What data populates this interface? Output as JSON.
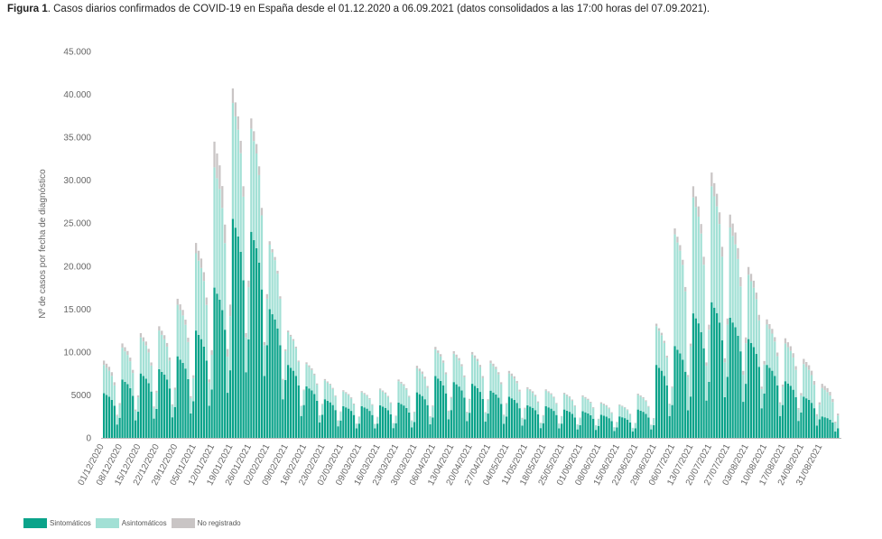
{
  "caption": {
    "bold": "Figura 1",
    "text": ". Casos diarios confirmados de COVID-19 en España desde el 01.12.2020 a 06.09.2021 (datos consolidados a las 17:00 horas del 07.09.2021)."
  },
  "colors": {
    "sintomaticos": "#0aa38a",
    "asintomaticos": "#a2e0d5",
    "no_registrado": "#c9c5c5",
    "tick_text": "#666666"
  },
  "chart_data": {
    "type": "bar",
    "stacked": true,
    "title": "Casos diarios confirmados de COVID-19 en España desde el 01.12.2020 a 06.09.2021 (datos consolidados a las 17:00 horas del 07.09.2021)",
    "xlabel": "",
    "ylabel": "Nº de casos por fecha de diagnóstico",
    "ylim": [
      0,
      45000
    ],
    "grid": false,
    "y_ticks": [
      0,
      5000,
      10000,
      15000,
      20000,
      25000,
      30000,
      35000,
      40000,
      45000
    ],
    "y_tick_labels": [
      "0",
      "5000",
      "10.000",
      "15.000",
      "20.000",
      "25.000",
      "30.000",
      "35.000",
      "40.000",
      "45.000"
    ],
    "x_tick_labels": [
      "01/12/2020",
      "08/12/2020",
      "15/12/2020",
      "22/12/2020",
      "29/12/2020",
      "05/01/2021",
      "12/01/2021",
      "19/01/2021",
      "26/01/2021",
      "02/02/2021",
      "09/02/2021",
      "16/02/2021",
      "23/02/2021",
      "02/03/2021",
      "09/03/2021",
      "16/03/2021",
      "23/03/2021",
      "30/03/2021",
      "06/04/2021",
      "13/04/2021",
      "20/04/2021",
      "27/04/2021",
      "04/05/2021",
      "11/05/2021",
      "18/05/2021",
      "25/05/2021",
      "01/06/2021",
      "08/06/2021",
      "15/06/2021",
      "22/06/2021",
      "29/06/2021",
      "06/07/2021",
      "13/07/2021",
      "20/07/2021",
      "27/07/2021",
      "03/08/2021",
      "10/08/2021",
      "17/08/2021",
      "24/08/2021",
      "31/08/2021"
    ],
    "legend_position": "bottom-left",
    "series": [
      {
        "name": "Sintomáticos",
        "weekly_weekday_values": [
          5200,
          6800,
          7500,
          8000,
          9500,
          12500,
          17500,
          25500,
          24000,
          15000,
          8500,
          6000,
          4500,
          3700,
          3700,
          3800,
          4100,
          5300,
          7200,
          6500,
          6300,
          5500,
          4800,
          3800,
          3700,
          3300,
          3100,
          2700,
          2500,
          3300,
          8500,
          10700,
          14500,
          15800,
          14000,
          11500,
          8500,
          6600,
          4800,
          2500
        ]
      },
      {
        "name": "Asintomáticos",
        "weekly_weekday_values": [
          3300,
          3700,
          4200,
          4500,
          6000,
          9000,
          14000,
          13500,
          12000,
          7500,
          3800,
          2600,
          2200,
          1700,
          1600,
          1800,
          2500,
          2800,
          3100,
          3300,
          3400,
          3200,
          2700,
          1900,
          1800,
          1800,
          1700,
          1300,
          1300,
          1700,
          4500,
          13000,
          13500,
          13500,
          10500,
          7500,
          4700,
          4400,
          3800,
          3300
        ]
      },
      {
        "name": "No registrado",
        "weekly_weekday_values": [
          500,
          500,
          500,
          500,
          700,
          1200,
          3000,
          1700,
          1200,
          400,
          200,
          200,
          150,
          150,
          150,
          150,
          200,
          300,
          300,
          300,
          300,
          300,
          300,
          200,
          150,
          150,
          150,
          150,
          100,
          150,
          300,
          700,
          1300,
          1600,
          1500,
          900,
          600,
          600,
          600,
          500
        ]
      }
    ]
  },
  "legend": {
    "items": [
      {
        "label": "Sintomáticos"
      },
      {
        "label": "Asintomáticos"
      },
      {
        "label": "No registrado"
      }
    ]
  }
}
